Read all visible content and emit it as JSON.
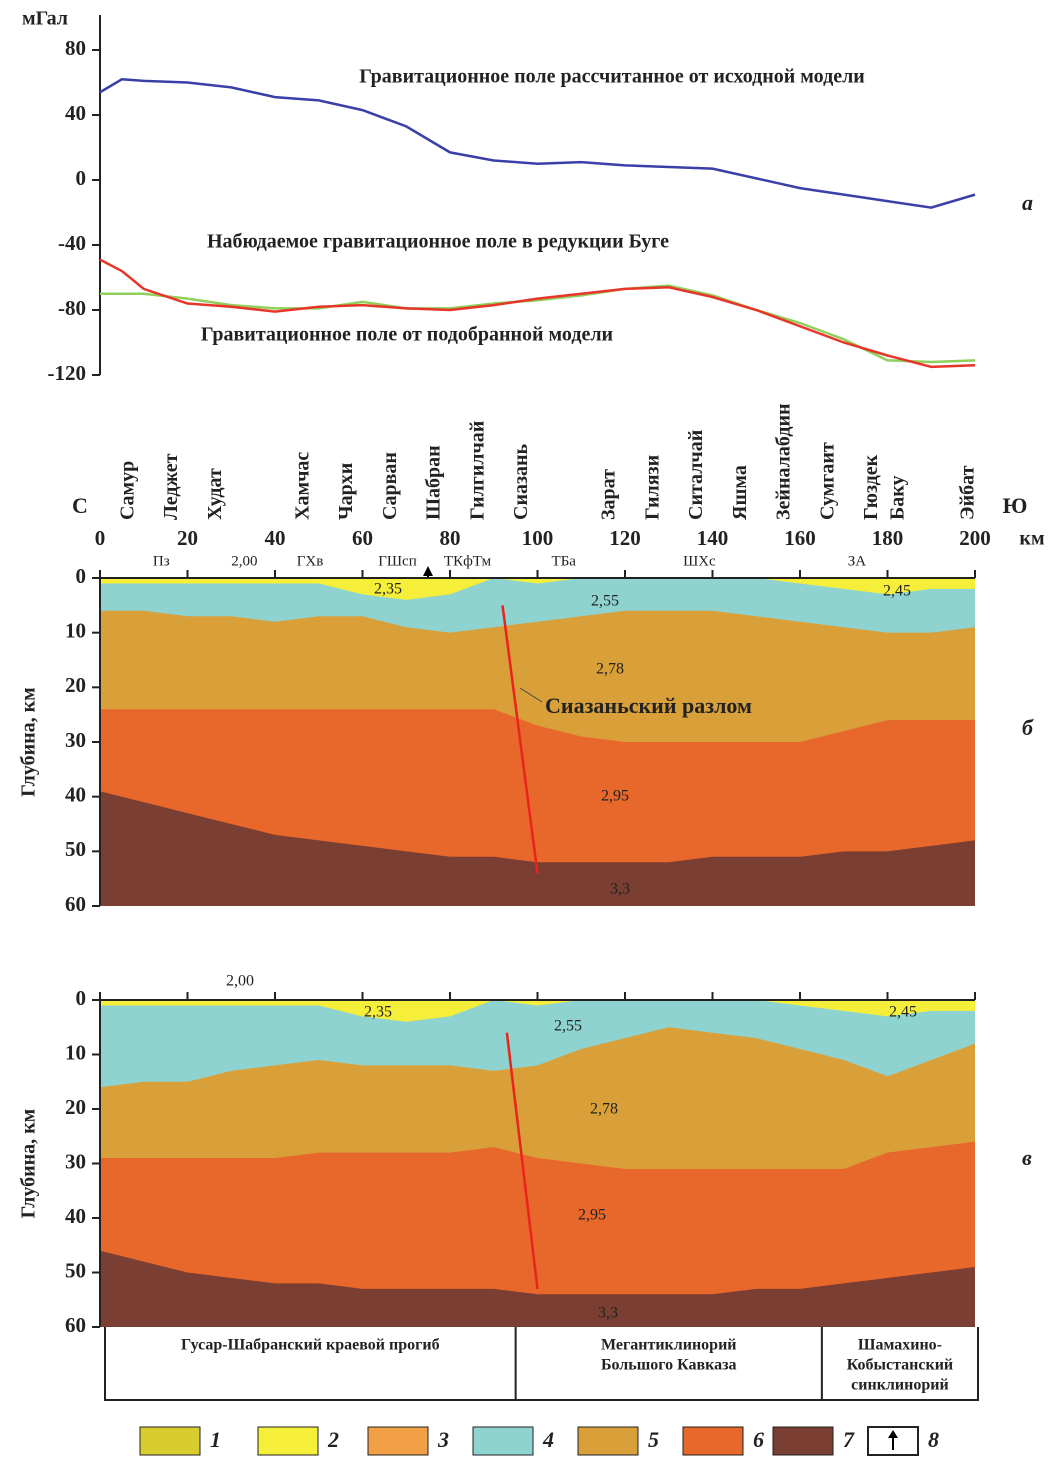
{
  "chart_data": [
    {
      "type": "line",
      "panel": "а",
      "ylabel": "мГал",
      "x": [
        0,
        5,
        10,
        20,
        30,
        40,
        50,
        60,
        70,
        80,
        90,
        100,
        110,
        120,
        130,
        140,
        150,
        160,
        170,
        180,
        190,
        200
      ],
      "xlim": [
        0,
        200
      ],
      "ylim": [
        -120,
        80
      ],
      "yticks": [
        -120,
        -80,
        -40,
        0,
        40,
        80
      ],
      "series": [
        {
          "name": "Гравитационное поле рассчитанное от исходной модели",
          "color": "#3b3fa8",
          "values": [
            54,
            62,
            61,
            60,
            57,
            51,
            49,
            43,
            33,
            17,
            12,
            10,
            11,
            9,
            8,
            7,
            1,
            -5,
            -9,
            -13,
            -17,
            -9
          ]
        },
        {
          "name": "Набюдаемое гравитационное поле в редукции Буге",
          "color": "#8fcf5a",
          "values": [
            -70,
            -70,
            -70,
            -73,
            -77,
            -79,
            -79,
            -75,
            -79,
            -79,
            -76,
            -74,
            -71,
            -67,
            -65,
            -71,
            -80,
            -88,
            -98,
            -111,
            -112,
            -111
          ]
        },
        {
          "name": "Гравитационное поле от подобранной модели",
          "color": "#e8352a",
          "values": [
            -49,
            -56,
            -67,
            -76,
            -78,
            -81,
            -78,
            -77,
            -79,
            -80,
            -77,
            -73,
            -70,
            -67,
            -66,
            -72,
            -80,
            -90,
            -100,
            -108,
            -115,
            -114
          ]
        }
      ]
    },
    {
      "type": "section",
      "panel": "б",
      "ylabel": "Глубина, км",
      "north": "С",
      "south": "Ю",
      "xunit": "км",
      "xlim": [
        0,
        200
      ],
      "xticks": [
        0,
        20,
        40,
        60,
        80,
        100,
        120,
        140,
        160,
        180,
        200
      ],
      "ylim": [
        0,
        60
      ],
      "yticks": [
        0,
        10,
        20,
        30,
        40,
        50,
        60
      ],
      "x": [
        0,
        10,
        20,
        30,
        40,
        50,
        60,
        70,
        80,
        90,
        100,
        110,
        120,
        130,
        140,
        150,
        160,
        170,
        180,
        190,
        200
      ],
      "stations": {
        "names": [
          "Самур",
          "Леджет",
          "Худат",
          "Хамчас",
          "Чархи",
          "Сарван",
          "Шабран",
          "Гилгилчай",
          "Сиазань",
          "Зарат",
          "Гилязи",
          "Ситалчай",
          "Яшма",
          "Зейналабдин",
          "Сумгаит",
          "Гюздек",
          "Баку",
          "Эйбат"
        ],
        "x": [
          5,
          15,
          25,
          45,
          55,
          65,
          75,
          85,
          95,
          115,
          125,
          135,
          145,
          155,
          165,
          175,
          181,
          197
        ]
      },
      "zones": {
        "labels": [
          "Пз",
          "2,00",
          "ГХв",
          "ГШсп",
          "ТКфТм",
          "ТБа",
          "ШХс",
          "ЗА"
        ],
        "x": [
          14,
          33,
          48,
          68,
          84,
          106,
          137,
          173
        ]
      },
      "layers": [
        {
          "name": "2,35",
          "color": "#f6ef3a",
          "values": [
            0,
            0,
            0,
            0,
            0,
            0,
            0,
            0,
            0,
            0,
            0,
            0,
            0,
            0,
            0,
            0,
            0,
            0,
            0,
            0,
            0
          ]
        },
        {
          "name": "2,55",
          "color": "#8fd3d0",
          "values": [
            1,
            1,
            1,
            1,
            1,
            1,
            3,
            4,
            3,
            0,
            1,
            0,
            0,
            0,
            0,
            0,
            1,
            2,
            3,
            2,
            2
          ]
        },
        {
          "name": "2,78",
          "color": "#d9a03a",
          "values": [
            6,
            6,
            7,
            7,
            8,
            7,
            7,
            9,
            10,
            9,
            8,
            7,
            6,
            6,
            6,
            7,
            8,
            9,
            10,
            10,
            9
          ]
        },
        {
          "name": "2,95",
          "color": "#e8672a",
          "values": [
            24,
            24,
            24,
            24,
            24,
            24,
            24,
            24,
            24,
            24,
            27,
            29,
            30,
            30,
            30,
            30,
            30,
            28,
            26,
            26,
            26
          ]
        },
        {
          "name": "3,3",
          "color": "#7a3f32",
          "values": [
            39,
            41,
            43,
            45,
            47,
            48,
            49,
            50,
            51,
            51,
            52,
            52,
            52,
            52,
            51,
            51,
            51,
            50,
            50,
            49,
            48
          ]
        }
      ],
      "fault": {
        "label": "Сиазаньский разлом",
        "x": [
          92,
          100
        ],
        "y": [
          5,
          54
        ]
      },
      "annotations": [
        "2,45"
      ]
    },
    {
      "type": "section",
      "panel": "в",
      "ylabel": "Глубина, км",
      "xlim": [
        0,
        200
      ],
      "ylim": [
        0,
        60
      ],
      "yticks": [
        0,
        10,
        20,
        30,
        40,
        50,
        60
      ],
      "x": [
        0,
        10,
        20,
        30,
        40,
        50,
        60,
        70,
        80,
        90,
        100,
        110,
        120,
        130,
        140,
        150,
        160,
        170,
        180,
        190,
        200
      ],
      "layers": [
        {
          "name": "2,35",
          "color": "#f6ef3a",
          "values": [
            0,
            0,
            0,
            0,
            0,
            0,
            0,
            0,
            0,
            0,
            0,
            0,
            0,
            0,
            0,
            0,
            0,
            0,
            0,
            0,
            0
          ]
        },
        {
          "name": "2,55",
          "color": "#8fd3d0",
          "values": [
            1,
            1,
            1,
            1,
            1,
            1,
            3,
            4,
            3,
            0,
            1,
            0,
            0,
            0,
            0,
            0,
            1,
            2,
            3,
            2,
            2
          ]
        },
        {
          "name": "2,78",
          "color": "#d9a03a",
          "values": [
            16,
            15,
            15,
            13,
            12,
            11,
            12,
            12,
            12,
            13,
            12,
            9,
            7,
            5,
            6,
            7,
            9,
            11,
            14,
            11,
            8
          ]
        },
        {
          "name": "2,95",
          "color": "#e8672a",
          "values": [
            29,
            29,
            29,
            29,
            29,
            28,
            28,
            28,
            28,
            27,
            29,
            30,
            31,
            31,
            31,
            31,
            31,
            31,
            28,
            27,
            26
          ]
        },
        {
          "name": "3,3",
          "color": "#7a3f32",
          "values": [
            46,
            48,
            50,
            51,
            52,
            52,
            53,
            53,
            53,
            53,
            54,
            54,
            54,
            54,
            54,
            53,
            53,
            52,
            51,
            50,
            49
          ]
        }
      ],
      "fault": {
        "x": [
          93,
          100
        ],
        "y": [
          6,
          53
        ]
      },
      "annotations": [
        "2,00",
        "2,45"
      ]
    }
  ],
  "regions": {
    "labels": [
      [
        "Гусар-Шабранский краевой прогиб"
      ],
      [
        "Мегантиклинорий",
        "Большого Кавказа"
      ],
      [
        "Шамахино-",
        "Кобыстанский",
        "синклинорий"
      ]
    ],
    "x": [
      95,
      165
    ]
  },
  "legend": {
    "items": [
      "1",
      "2",
      "3",
      "4",
      "5",
      "6",
      "7",
      "8"
    ],
    "colors": [
      "#d9cc2e",
      "#f6ef3a",
      "#f2a046",
      "#8fd3d0",
      "#d9a03a",
      "#e8672a",
      "#7a3f32"
    ]
  }
}
